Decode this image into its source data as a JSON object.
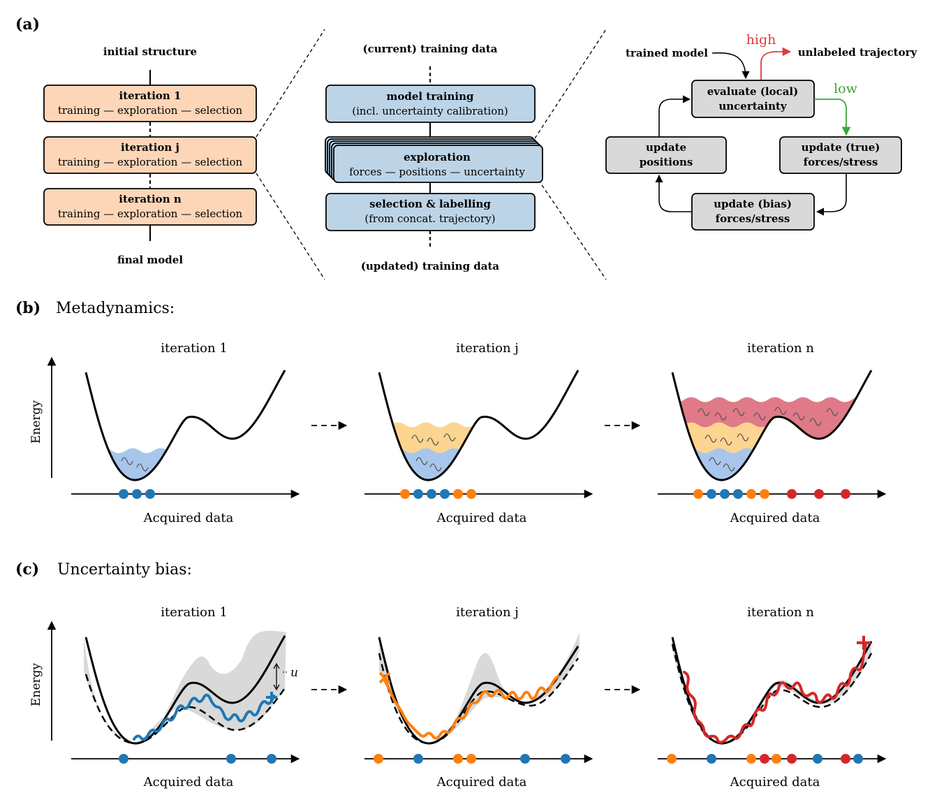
{
  "panel_a": {
    "label": "(a)",
    "left": {
      "top_label": "initial structure",
      "bottom_label": "final model",
      "boxes": [
        {
          "title": "iteration 1",
          "sub": "training — exploration — selection"
        },
        {
          "title": "iteration j",
          "sub": "training — exploration — selection"
        },
        {
          "title": "iteration n",
          "sub": "training — exploration — selection"
        }
      ]
    },
    "middle": {
      "top_label": "(current) training data",
      "bottom_label": "(updated) training data",
      "boxes": [
        {
          "title": "model training",
          "sub": "(incl. uncertainty calibration)"
        },
        {
          "title": "exploration",
          "sub": "forces — positions — uncertainty"
        },
        {
          "title": "selection & labelling",
          "sub": "(from concat. trajectory)"
        }
      ]
    },
    "right": {
      "trained_model": "trained model",
      "high": "high",
      "low": "low",
      "unlabeled": "unlabeled trajectory",
      "evaluate": [
        "evaluate (local)",
        "uncertainty"
      ],
      "update_positions": [
        "update",
        "positions"
      ],
      "update_true": [
        "update (true)",
        "forces/stress"
      ],
      "update_bias": [
        "update (bias)",
        "forces/stress"
      ]
    }
  },
  "panel_b": {
    "label": "(b)",
    "title": "Metadynamics:",
    "ylabel": "Energy",
    "xlabel": "Acquired data",
    "iterations": [
      "iteration 1",
      "iteration j",
      "iteration n"
    ]
  },
  "panel_c": {
    "label": "(c)",
    "title": "Uncertainty bias:",
    "ylabel": "Energy",
    "xlabel": "Acquired data",
    "iterations": [
      "iteration 1",
      "iteration j",
      "iteration n"
    ],
    "u_label": "u"
  },
  "colors": {
    "orange_box": "#fdd6b8",
    "blue_box": "#bcd4e6",
    "gray_box": "#d9d9d9",
    "blue": "#1f77b4",
    "orange": "#ff7f0e",
    "red": "#d62728",
    "high_red": "#e03a3a",
    "low_green": "#3aa53a",
    "fill_blue": "#a8c6ec",
    "fill_orange": "#fcd590",
    "fill_red": "#e07a88"
  },
  "chart_data": [
    {
      "type": "scatter",
      "title": "iteration 1",
      "panel": "b",
      "series": [
        {
          "color": "blue",
          "x": [
            1,
            2,
            3
          ]
        }
      ]
    },
    {
      "type": "scatter",
      "title": "iteration j",
      "panel": "b",
      "series": [
        {
          "color": "orange",
          "x": [
            1,
            5,
            6
          ]
        },
        {
          "color": "blue",
          "x": [
            2,
            3,
            4
          ]
        }
      ]
    },
    {
      "type": "scatter",
      "title": "iteration n",
      "panel": "b",
      "series": [
        {
          "color": "orange",
          "x": [
            1,
            5,
            6
          ]
        },
        {
          "color": "blue",
          "x": [
            2,
            3,
            4
          ]
        },
        {
          "color": "red",
          "x": [
            7,
            8,
            9
          ]
        }
      ]
    },
    {
      "type": "scatter",
      "title": "iteration 1",
      "panel": "c",
      "series": [
        {
          "color": "blue",
          "x": [
            1,
            2,
            3
          ]
        }
      ]
    },
    {
      "type": "scatter",
      "title": "iteration j",
      "panel": "c",
      "series": [
        {
          "color": "orange",
          "x": [
            1,
            3,
            4
          ]
        },
        {
          "color": "blue",
          "x": [
            2,
            5,
            6
          ]
        }
      ]
    },
    {
      "type": "scatter",
      "title": "iteration n",
      "panel": "c",
      "series": [
        {
          "color": "orange",
          "x": [
            1,
            3,
            4
          ]
        },
        {
          "color": "blue",
          "x": [
            2,
            6,
            8
          ]
        },
        {
          "color": "red",
          "x": [
            5,
            7,
            9
          ]
        }
      ]
    }
  ]
}
